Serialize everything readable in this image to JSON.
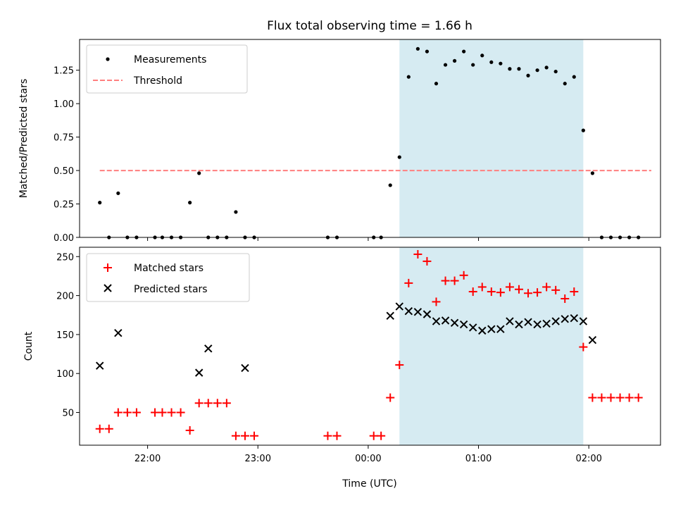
{
  "chart_data": [
    {
      "type": "scatter",
      "title": "Flux total observing time = 1.66 h",
      "xlabel": "",
      "ylabel": "Matched/Predicted stars",
      "xlim": [
        "21:23",
        "02:39"
      ],
      "ylim": [
        0,
        1.48
      ],
      "yticks": [
        0.0,
        0.25,
        0.5,
        0.75,
        1.0,
        1.25
      ],
      "ytick_labels": [
        "0.00",
        "0.25",
        "0.50",
        "0.75",
        "1.00",
        "1.25"
      ],
      "xticks": [
        "22:00",
        "23:00",
        "00:00",
        "01:00",
        "02:00"
      ],
      "show_xtick_labels": false,
      "grid": false,
      "legend": {
        "position": "top-left",
        "entries": [
          "Measurements",
          "Threshold"
        ]
      },
      "shaded_region": {
        "from": "00:17",
        "to": "01:57",
        "color": "#add8e6"
      },
      "threshold": {
        "name": "Threshold",
        "value": 0.5,
        "from": "21:34",
        "to": "02:34",
        "color": "#ff7f7f",
        "style": "dashed"
      },
      "series": [
        {
          "name": "Measurements",
          "marker": "dot",
          "color": "#000000",
          "x": [
            "21:34",
            "21:39",
            "21:44",
            "21:49",
            "21:54",
            "22:04",
            "22:08",
            "22:13",
            "22:18",
            "22:23",
            "22:28",
            "22:33",
            "22:38",
            "22:43",
            "22:48",
            "22:53",
            "22:58",
            "23:38",
            "23:43",
            "00:03",
            "00:07",
            "00:12",
            "00:17",
            "00:22",
            "00:27",
            "00:32",
            "00:37",
            "00:42",
            "00:47",
            "00:52",
            "00:57",
            "01:02",
            "01:07",
            "01:12",
            "01:17",
            "01:22",
            "01:27",
            "01:32",
            "01:37",
            "01:42",
            "01:47",
            "01:52",
            "01:57",
            "02:02",
            "02:07",
            "02:12",
            "02:17",
            "02:22",
            "02:27"
          ],
          "y": [
            0.26,
            0.0,
            0.33,
            0.0,
            0.0,
            0.0,
            0.0,
            0.0,
            0.0,
            0.26,
            0.48,
            0.0,
            0.0,
            0.0,
            0.19,
            0.0,
            0.0,
            0.0,
            0.0,
            0.0,
            0.0,
            0.39,
            0.6,
            1.2,
            1.41,
            1.39,
            1.15,
            1.29,
            1.32,
            1.39,
            1.29,
            1.36,
            1.31,
            1.3,
            1.26,
            1.26,
            1.21,
            1.25,
            1.27,
            1.24,
            1.15,
            1.2,
            0.8,
            0.48,
            0.0,
            0.0,
            0.0,
            0.0,
            0.0
          ]
        }
      ]
    },
    {
      "type": "scatter",
      "title": "",
      "xlabel": "Time (UTC)",
      "ylabel": "Count",
      "xlim": [
        "21:23",
        "02:39"
      ],
      "ylim": [
        8,
        262
      ],
      "yticks": [
        50,
        100,
        150,
        200,
        250
      ],
      "ytick_labels": [
        "50",
        "100",
        "150",
        "200",
        "250"
      ],
      "xticks": [
        "22:00",
        "23:00",
        "00:00",
        "01:00",
        "02:00"
      ],
      "xtick_labels": [
        "22:00",
        "23:00",
        "00:00",
        "01:00",
        "02:00"
      ],
      "grid": false,
      "legend": {
        "position": "top-left",
        "entries": [
          "Matched stars",
          "Predicted stars"
        ]
      },
      "shaded_region": {
        "from": "00:17",
        "to": "01:57",
        "color": "#add8e6"
      },
      "series": [
        {
          "name": "Matched stars",
          "marker": "plus",
          "color": "#ff0000",
          "x": [
            "21:34",
            "21:39",
            "21:44",
            "21:49",
            "21:54",
            "22:04",
            "22:08",
            "22:13",
            "22:18",
            "22:23",
            "22:28",
            "22:33",
            "22:38",
            "22:43",
            "22:48",
            "22:53",
            "22:58",
            "23:38",
            "23:43",
            "00:03",
            "00:07",
            "00:12",
            "00:17",
            "00:22",
            "00:27",
            "00:32",
            "00:37",
            "00:42",
            "00:47",
            "00:52",
            "00:57",
            "01:02",
            "01:07",
            "01:12",
            "01:17",
            "01:22",
            "01:27",
            "01:32",
            "01:37",
            "01:42",
            "01:47",
            "01:52",
            "01:57",
            "02:02",
            "02:07",
            "02:12",
            "02:17",
            "02:22",
            "02:27"
          ],
          "y": [
            29,
            29,
            50,
            50,
            50,
            50,
            50,
            50,
            50,
            27,
            62,
            62,
            62,
            62,
            20,
            20,
            20,
            20,
            20,
            20,
            20,
            69,
            111,
            216,
            253,
            244,
            192,
            219,
            219,
            226,
            205,
            211,
            205,
            204,
            211,
            208,
            203,
            204,
            211,
            207,
            196,
            205,
            134,
            69,
            69,
            69,
            69,
            69,
            69
          ]
        },
        {
          "name": "Predicted stars",
          "marker": "x",
          "color": "#000000",
          "x": [
            "21:34",
            "21:44",
            "22:28",
            "22:33",
            "22:53",
            "00:12",
            "00:17",
            "00:22",
            "00:27",
            "00:32",
            "00:37",
            "00:42",
            "00:47",
            "00:52",
            "00:57",
            "01:02",
            "01:07",
            "01:12",
            "01:17",
            "01:22",
            "01:27",
            "01:32",
            "01:37",
            "01:42",
            "01:47",
            "01:52",
            "01:57",
            "02:02"
          ],
          "y": [
            110,
            152,
            101,
            132,
            107,
            174,
            186,
            180,
            179,
            176,
            167,
            168,
            165,
            163,
            159,
            155,
            157,
            157,
            167,
            163,
            166,
            163,
            164,
            167,
            170,
            171,
            167,
            143
          ]
        }
      ]
    }
  ]
}
